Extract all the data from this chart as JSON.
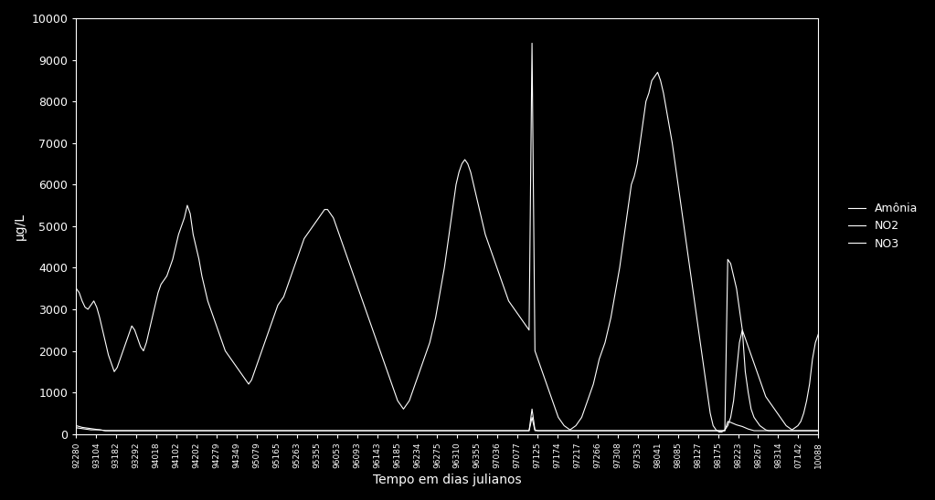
{
  "background_color": "#000000",
  "text_color": "#ffffff",
  "line_color": "#ffffff",
  "xlabel": "Tempo em dias julianos",
  "ylabel": "µg/L",
  "ylim": [
    0,
    10000
  ],
  "yticks": [
    0,
    1000,
    2000,
    3000,
    4000,
    5000,
    6000,
    7000,
    8000,
    9000,
    10000
  ],
  "legend_labels": [
    "Amônia",
    "NO2",
    "NO3"
  ],
  "xtick_labels": [
    "92280",
    "93104",
    "93182",
    "93292",
    "94018",
    "94102",
    "94202",
    "94279",
    "94349",
    "95079",
    "95165",
    "95263",
    "95355",
    "96053",
    "96093",
    "96143",
    "96185",
    "96234",
    "96275",
    "96310",
    "96355",
    "97036",
    "97077",
    "97125",
    "97174",
    "97217",
    "97266",
    "97308",
    "97353",
    "98041",
    "98085",
    "98127",
    "98175",
    "98223",
    "98267",
    "98314",
    "07142",
    "10088"
  ],
  "amonia": [
    3500,
    3400,
    3200,
    3050,
    3000,
    3100,
    3200,
    3050,
    2800,
    2500,
    2200,
    1900,
    1700,
    1500,
    1600,
    1800,
    2000,
    2200,
    2400,
    2600,
    2500,
    2300,
    2100,
    2000,
    2200,
    2500,
    2800,
    3100,
    3400,
    3600,
    3700,
    3800,
    4000,
    4200,
    4500,
    4800,
    5000,
    5200,
    5500,
    5300,
    4800,
    4500,
    4200,
    3800,
    3500,
    3200,
    3000,
    2800,
    2600,
    2400,
    2200,
    2000,
    1900,
    1800,
    1700,
    1600,
    1500,
    1400,
    1300,
    1200,
    1300,
    1500,
    1700,
    1900,
    2100,
    2300,
    2500,
    2700,
    2900,
    3100,
    3200,
    3300,
    3500,
    3700,
    3900,
    4100,
    4300,
    4500,
    4700,
    4800,
    4900,
    5000,
    5100,
    5200,
    5300,
    5400,
    5400,
    5300,
    5200,
    5000,
    4800,
    4600,
    4400,
    4200,
    4000,
    3800,
    3600,
    3400,
    3200,
    3000,
    2800,
    2600,
    2400,
    2200,
    2000,
    1800,
    1600,
    1400,
    1200,
    1000,
    800,
    700,
    600,
    700,
    800,
    1000,
    1200,
    1400,
    1600,
    1800,
    2000,
    2200,
    2500,
    2800,
    3200,
    3600,
    4000,
    4500,
    5000,
    5500,
    6000,
    6300,
    6500,
    6600,
    6500,
    6300,
    6000,
    5700,
    5400,
    5100,
    4800,
    4600,
    4400,
    4200,
    4000,
    3800,
    3600,
    3400,
    3200,
    3100,
    3000,
    2900,
    2800,
    2700,
    2600,
    2500,
    9400,
    2000,
    1800,
    1600,
    1400,
    1200,
    1000,
    800,
    600,
    400,
    300,
    200,
    150,
    100,
    150,
    200,
    300,
    400,
    600,
    800,
    1000,
    1200,
    1500,
    1800,
    2000,
    2200,
    2500,
    2800,
    3200,
    3600,
    4000,
    4500,
    5000,
    5500,
    6000,
    6200,
    6500,
    7000,
    7500,
    8000,
    8200,
    8500,
    8600,
    8700,
    8500,
    8200,
    7800,
    7400,
    7000,
    6500,
    6000,
    5500,
    5000,
    4500,
    4000,
    3500,
    3000,
    2500,
    2000,
    1500,
    1000,
    500,
    200,
    100,
    50,
    50,
    100,
    200,
    400,
    800,
    1500,
    2200,
    2500,
    2300,
    2100,
    1900,
    1700,
    1500,
    1300,
    1100,
    900,
    800,
    700,
    600,
    500,
    400,
    300,
    200,
    150,
    100,
    150,
    200,
    300,
    500,
    800,
    1200,
    1800,
    2200,
    2400
  ],
  "no2": [
    200,
    180,
    160,
    150,
    140,
    130,
    120,
    110,
    100,
    90,
    80,
    80,
    80,
    80,
    80,
    80,
    80,
    80,
    80,
    80,
    80,
    80,
    80,
    80,
    80,
    80,
    80,
    80,
    80,
    80,
    80,
    80,
    80,
    80,
    80,
    80,
    80,
    80,
    80,
    80,
    80,
    80,
    80,
    80,
    80,
    80,
    80,
    80,
    80,
    80,
    80,
    80,
    80,
    80,
    80,
    80,
    80,
    80,
    80,
    80,
    80,
    80,
    80,
    80,
    80,
    80,
    80,
    80,
    80,
    80,
    80,
    80,
    80,
    80,
    80,
    80,
    80,
    80,
    80,
    80,
    80,
    80,
    80,
    80,
    80,
    80,
    80,
    80,
    80,
    80,
    80,
    80,
    80,
    80,
    80,
    80,
    80,
    80,
    80,
    80,
    80,
    80,
    80,
    80,
    80,
    80,
    80,
    80,
    80,
    80,
    80,
    80,
    80,
    80,
    80,
    80,
    80,
    80,
    80,
    80,
    80,
    80,
    80,
    80,
    80,
    80,
    80,
    80,
    80,
    80,
    80,
    80,
    80,
    80,
    80,
    80,
    80,
    80,
    80,
    80,
    80,
    80,
    80,
    80,
    80,
    80,
    80,
    80,
    80,
    80,
    80,
    80,
    80,
    80,
    80,
    80,
    600,
    100,
    80,
    80,
    80,
    80,
    80,
    80,
    80,
    80,
    80,
    80,
    80,
    80,
    80,
    80,
    80,
    80,
    80,
    80,
    80,
    80,
    80,
    80,
    80,
    80,
    80,
    80,
    80,
    80,
    80,
    80,
    80,
    80,
    80,
    80,
    80,
    80,
    80,
    80,
    80,
    80,
    80,
    80,
    80,
    80,
    80,
    80,
    80,
    80,
    80,
    80,
    80,
    80,
    80,
    80,
    80,
    80,
    80,
    80,
    80,
    80,
    80,
    80,
    80,
    80,
    80,
    4200,
    4100,
    3800,
    3500,
    3000,
    2500,
    1500,
    1000,
    600,
    400,
    300,
    200,
    150,
    100,
    80,
    80,
    80,
    80,
    80,
    80,
    80,
    80,
    80,
    80,
    80,
    80,
    80,
    80,
    80,
    80,
    80,
    80
  ],
  "no3": [
    150,
    140,
    130,
    120,
    110,
    100,
    100,
    100,
    100,
    90,
    80,
    80,
    80,
    80,
    80,
    80,
    80,
    80,
    80,
    80,
    80,
    80,
    80,
    80,
    80,
    80,
    80,
    80,
    80,
    80,
    80,
    80,
    80,
    80,
    80,
    80,
    80,
    80,
    80,
    80,
    80,
    80,
    80,
    80,
    80,
    80,
    80,
    80,
    80,
    80,
    80,
    80,
    80,
    80,
    80,
    80,
    80,
    80,
    80,
    80,
    80,
    80,
    80,
    80,
    80,
    80,
    80,
    80,
    80,
    80,
    80,
    80,
    80,
    80,
    80,
    80,
    80,
    80,
    80,
    80,
    80,
    80,
    80,
    80,
    80,
    80,
    80,
    80,
    80,
    80,
    80,
    80,
    80,
    80,
    80,
    80,
    80,
    80,
    80,
    80,
    80,
    80,
    80,
    80,
    80,
    80,
    80,
    80,
    80,
    80,
    80,
    80,
    80,
    80,
    80,
    80,
    80,
    80,
    80,
    80,
    80,
    80,
    80,
    80,
    80,
    80,
    80,
    80,
    80,
    80,
    80,
    80,
    80,
    80,
    80,
    80,
    80,
    80,
    80,
    80,
    80,
    80,
    80,
    80,
    80,
    80,
    80,
    80,
    80,
    80,
    80,
    80,
    80,
    80,
    80,
    80,
    400,
    80,
    80,
    80,
    80,
    80,
    80,
    80,
    80,
    80,
    80,
    80,
    80,
    80,
    80,
    80,
    80,
    80,
    80,
    80,
    80,
    80,
    80,
    80,
    80,
    80,
    80,
    80,
    80,
    80,
    80,
    80,
    80,
    80,
    80,
    80,
    80,
    80,
    80,
    80,
    80,
    80,
    80,
    80,
    80,
    80,
    80,
    80,
    80,
    80,
    80,
    80,
    80,
    80,
    80,
    80,
    80,
    80,
    80,
    80,
    80,
    80,
    80,
    80,
    80,
    80,
    80,
    300,
    280,
    250,
    220,
    200,
    180,
    150,
    120,
    100,
    80,
    80,
    80,
    80,
    80,
    80,
    80,
    80,
    80,
    80,
    80,
    80,
    80,
    80,
    80,
    80,
    80,
    80,
    80,
    80,
    80,
    80,
    80
  ]
}
